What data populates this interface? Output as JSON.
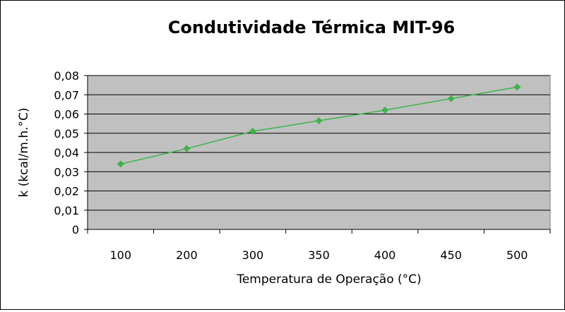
{
  "chart_data": {
    "type": "line",
    "title": "Condutividade Térmica MIT-96",
    "xlabel": "Temperatura de Operação (°C)",
    "ylabel": "k (kcal/m.h.°C)",
    "categories": [
      "100",
      "200",
      "300",
      "350",
      "400",
      "450",
      "500"
    ],
    "series": [
      {
        "values": [
          0.034,
          0.042,
          0.051,
          0.0565,
          0.062,
          0.068,
          0.074
        ]
      }
    ],
    "ylim": [
      0,
      0.08
    ],
    "yticks": [
      0,
      0.01,
      0.02,
      0.03,
      0.04,
      0.05,
      0.06,
      0.07,
      0.08
    ],
    "ytick_labels": [
      "0",
      "0,01",
      "0,02",
      "0,03",
      "0,04",
      "0,05",
      "0,06",
      "0,07",
      "0,08"
    ],
    "grid": true,
    "legend": "none",
    "colors": {
      "plot_background": "#c0c0c0",
      "series_line": "#3cb44b",
      "gridline": "#000000"
    }
  }
}
